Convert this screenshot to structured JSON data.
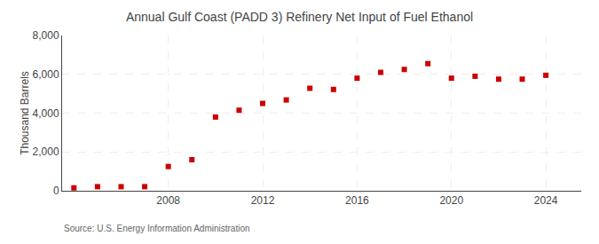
{
  "chart_data": {
    "type": "scatter",
    "title": "Annual Gulf Coast (PADD 3) Refinery Net Input of Fuel Ethanol",
    "ylabel": "Thousand Barrels",
    "annotations": [
      "Source: U.S. Energy Information Administration"
    ],
    "x": [
      2004,
      2005,
      2006,
      2007,
      2008,
      2009,
      2010,
      2011,
      2012,
      2013,
      2014,
      2015,
      2016,
      2017,
      2018,
      2019,
      2020,
      2021,
      2022,
      2023,
      2024
    ],
    "values": [
      150,
      210,
      210,
      210,
      1250,
      1600,
      3800,
      4150,
      4500,
      4680,
      5280,
      5220,
      5800,
      6100,
      6250,
      6550,
      5800,
      5900,
      5750,
      5750,
      5950
    ],
    "color": "#cc0000",
    "marker": "square",
    "xlim": [
      2003.5,
      2025.5
    ],
    "xticks": [
      2008,
      2012,
      2016,
      2020,
      2024
    ],
    "ylim": [
      0,
      8000
    ],
    "yticks": [
      0,
      {
        "value": 2000,
        "label": "2,000"
      },
      {
        "value": 4000,
        "label": "4,000"
      },
      {
        "value": 6000,
        "label": "6,000"
      },
      {
        "value": 8000,
        "label": "8,000"
      }
    ],
    "grid": true
  }
}
